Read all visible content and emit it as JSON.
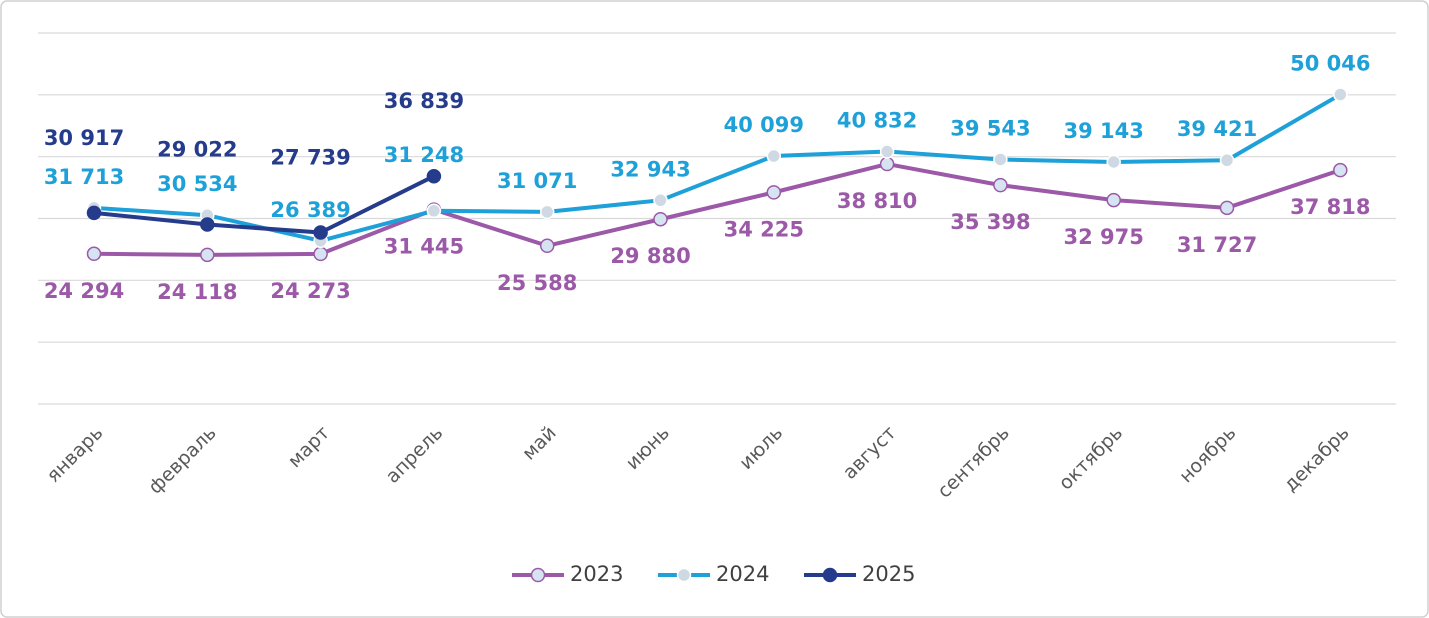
{
  "chart_data": {
    "type": "line",
    "categories": [
      "январь",
      "февраль",
      "март",
      "апрель",
      "май",
      "июнь",
      "июль",
      "август",
      "сентябрь",
      "октябрь",
      "ноябрь",
      "декабрь"
    ],
    "series": [
      {
        "name": "2023",
        "color": "#9b59a8",
        "marker_fill": "#d6e4f2",
        "values": [
          24294,
          24118,
          24273,
          31445,
          25588,
          29880,
          34225,
          38810,
          35398,
          32975,
          31727,
          37818
        ],
        "value_labels": [
          "24 294",
          "24 118",
          "24 273",
          "31 445",
          "25 588",
          "29 880",
          "34 225",
          "38 810",
          "35 398",
          "32 975",
          "31 727",
          "37 818"
        ]
      },
      {
        "name": "2024",
        "color": "#1ea0d8",
        "marker_fill": "#cfd9e3",
        "values": [
          31713,
          30534,
          26389,
          31248,
          31071,
          32943,
          40099,
          40832,
          39543,
          39143,
          39421,
          50046
        ],
        "value_labels": [
          "31 713",
          "30 534",
          "26 389",
          "31 248",
          "31 071",
          "32 943",
          "40 099",
          "40 832",
          "39 543",
          "39 143",
          "39 421",
          "50 046"
        ]
      },
      {
        "name": "2025",
        "color": "#253b8c",
        "marker_fill": "#253b8c",
        "values": [
          30917,
          29022,
          27739,
          36839,
          null,
          null,
          null,
          null,
          null,
          null,
          null,
          null
        ],
        "value_labels": [
          "30 917",
          "29 022",
          "27 739",
          "36 839",
          null,
          null,
          null,
          null,
          null,
          null,
          null,
          null
        ]
      }
    ],
    "ylim": [
      0,
      60000
    ],
    "yticks": [
      0,
      10000,
      20000,
      30000,
      40000,
      50000,
      60000
    ],
    "grid": true
  }
}
